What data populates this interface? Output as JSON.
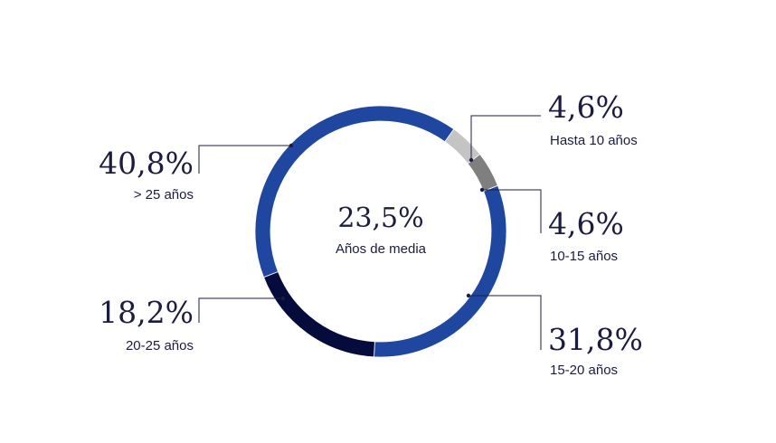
{
  "chart_data": {
    "type": "pie",
    "title": "",
    "center": {
      "value": "23,5%",
      "label": "Años de media"
    },
    "slices": [
      {
        "label": "Hasta 10 años",
        "value_text": "4,6%",
        "value": 4.6,
        "color": "#c4c4c4",
        "side": "right"
      },
      {
        "label": "10-15 años",
        "value_text": "4,6%",
        "value": 4.6,
        "color": "#7f7f7f",
        "side": "right"
      },
      {
        "label": "15-20 años",
        "value_text": "31,8%",
        "value": 31.8,
        "color": "#1f47a0",
        "side": "right"
      },
      {
        "label": "20-25 años",
        "value_text": "18,2%",
        "value": 18.2,
        "color": "#050c3b",
        "side": "left"
      },
      {
        "label": "> 25 años",
        "value_text": "40,8%",
        "value": 40.8,
        "color": "#1f47a0",
        "side": "left"
      }
    ],
    "legend": "none"
  }
}
